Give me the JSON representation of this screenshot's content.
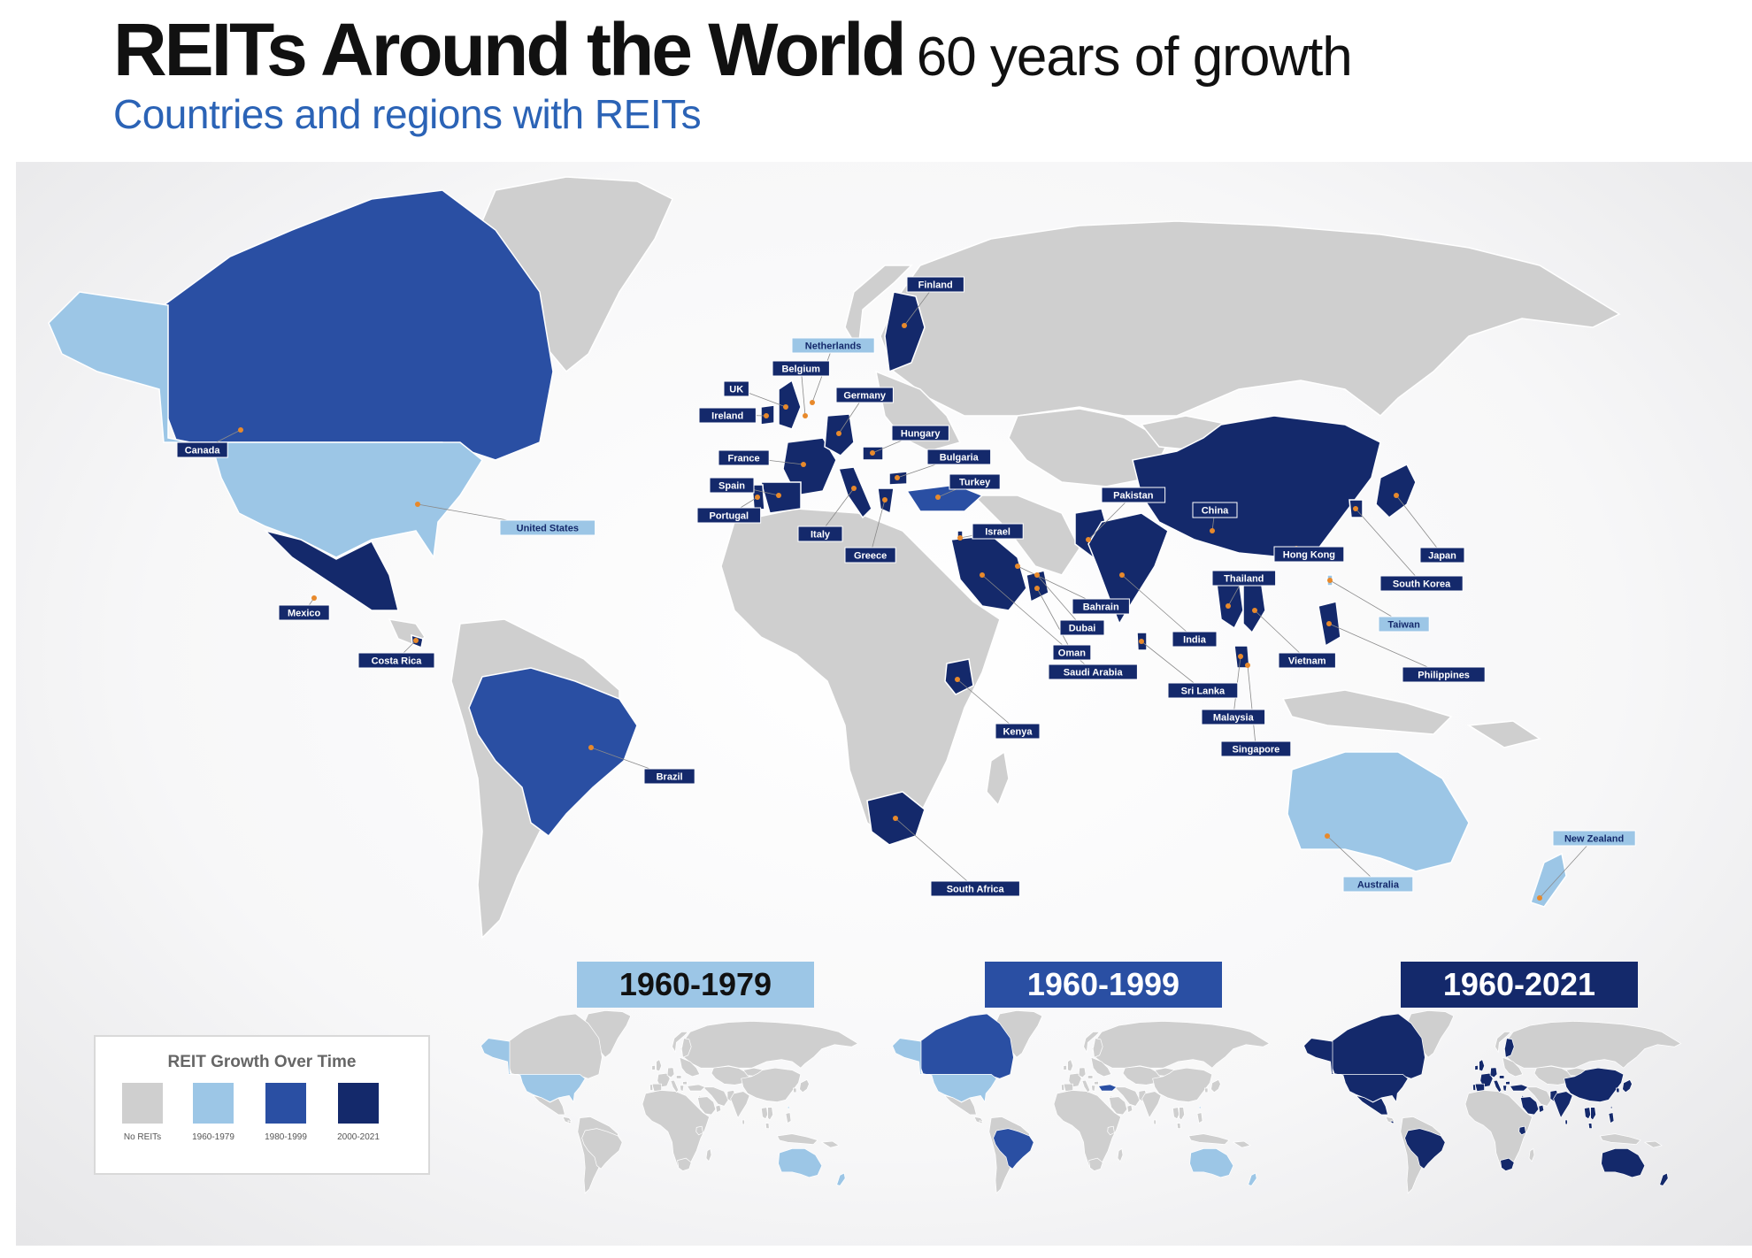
{
  "header": {
    "title": "REITs Around the World",
    "title_suffix": "60 years of growth",
    "subtitle": "Countries and regions with REITs"
  },
  "colors": {
    "no_reits": "#cfcfcf",
    "era_1960_1979": "#9cc6e6",
    "era_1980_1999": "#2a4fa3",
    "era_2000_2021": "#14296b",
    "ocean": "#f3f3f4",
    "subtitle_blue": "#2b63b6",
    "pin": "#e8892b"
  },
  "countries": [
    {
      "name": "Canada",
      "era": "1980-1999"
    },
    {
      "name": "United States",
      "era": "1960-1979"
    },
    {
      "name": "Mexico",
      "era": "2000-2021"
    },
    {
      "name": "Costa Rica",
      "era": "2000-2021"
    },
    {
      "name": "Brazil",
      "era": "1980-1999"
    },
    {
      "name": "Finland",
      "era": "2000-2021"
    },
    {
      "name": "Netherlands",
      "era": "1960-1979"
    },
    {
      "name": "Belgium",
      "era": "1980-1999"
    },
    {
      "name": "UK",
      "era": "2000-2021"
    },
    {
      "name": "Ireland",
      "era": "2000-2021"
    },
    {
      "name": "Germany",
      "era": "2000-2021"
    },
    {
      "name": "Hungary",
      "era": "2000-2021"
    },
    {
      "name": "France",
      "era": "2000-2021"
    },
    {
      "name": "Bulgaria",
      "era": "2000-2021"
    },
    {
      "name": "Spain",
      "era": "2000-2021"
    },
    {
      "name": "Turkey",
      "era": "1980-1999"
    },
    {
      "name": "Portugal",
      "era": "2000-2021"
    },
    {
      "name": "Italy",
      "era": "2000-2021"
    },
    {
      "name": "Israel",
      "era": "2000-2021"
    },
    {
      "name": "Greece",
      "era": "2000-2021"
    },
    {
      "name": "Pakistan",
      "era": "2000-2021"
    },
    {
      "name": "China",
      "era": "2000-2021"
    },
    {
      "name": "Hong Kong",
      "era": "2000-2021"
    },
    {
      "name": "Japan",
      "era": "2000-2021"
    },
    {
      "name": "South Korea",
      "era": "2000-2021"
    },
    {
      "name": "Thailand",
      "era": "2000-2021"
    },
    {
      "name": "Taiwan",
      "era": "1960-1979"
    },
    {
      "name": "Bahrain",
      "era": "2000-2021"
    },
    {
      "name": "Dubai",
      "era": "2000-2021"
    },
    {
      "name": "Oman",
      "era": "2000-2021"
    },
    {
      "name": "Saudi Arabia",
      "era": "2000-2021"
    },
    {
      "name": "India",
      "era": "2000-2021"
    },
    {
      "name": "Vietnam",
      "era": "2000-2021"
    },
    {
      "name": "Philippines",
      "era": "2000-2021"
    },
    {
      "name": "Sri Lanka",
      "era": "2000-2021"
    },
    {
      "name": "Malaysia",
      "era": "2000-2021"
    },
    {
      "name": "Singapore",
      "era": "2000-2021"
    },
    {
      "name": "Kenya",
      "era": "2000-2021"
    },
    {
      "name": "South Africa",
      "era": "2000-2021"
    },
    {
      "name": "Australia",
      "era": "1960-1979"
    },
    {
      "name": "New Zealand",
      "era": "1960-1979"
    }
  ],
  "periods": [
    "1960-1979",
    "1960-1999",
    "1960-2021"
  ],
  "legend": {
    "title": "REIT Growth Over Time",
    "items": [
      {
        "label": "No REITs",
        "color": "#cfcfcf"
      },
      {
        "label": "1960-1979",
        "color": "#9cc6e6"
      },
      {
        "label": "1980-1999",
        "color": "#2a4fa3"
      },
      {
        "label": "2000-2021",
        "color": "#14296b"
      }
    ]
  }
}
